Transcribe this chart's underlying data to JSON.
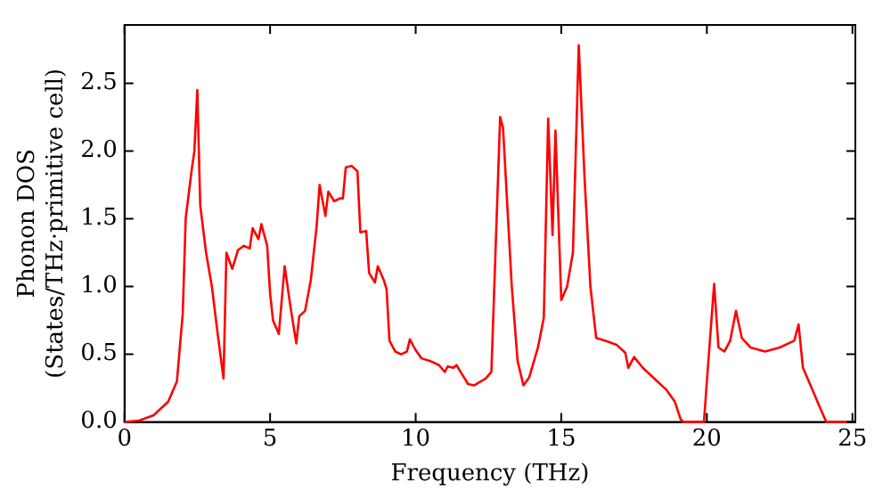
{
  "chart_data": {
    "type": "line",
    "xlabel": "Frequency (THz)",
    "ylabel": "Phonon DOS\n(States/THz·primitive cell)",
    "xlim": [
      0,
      25.1
    ],
    "ylim": [
      0,
      2.93
    ],
    "xticks": [
      0,
      5,
      10,
      15,
      20,
      25
    ],
    "yticks": [
      {
        "value": 0,
        "label": "0.0"
      },
      0.5,
      {
        "value": 1,
        "label": "1.0"
      },
      1.5,
      {
        "value": 2,
        "label": "2.0"
      },
      2.5
    ],
    "grid": false,
    "legend": false,
    "marker": "none",
    "line_style": "solid",
    "x": [
      0,
      0.5,
      1,
      1.5,
      1.8,
      2.0,
      2.1,
      2.3,
      2.4,
      2.5,
      2.6,
      2.8,
      3.0,
      3.2,
      3.4,
      3.5,
      3.7,
      3.9,
      4.1,
      4.3,
      4.4,
      4.6,
      4.7,
      4.9,
      5.0,
      5.1,
      5.3,
      5.5,
      5.7,
      5.9,
      6.0,
      6.2,
      6.4,
      6.6,
      6.7,
      6.9,
      7.0,
      7.2,
      7.4,
      7.5,
      7.6,
      7.8,
      8.0,
      8.1,
      8.3,
      8.4,
      8.6,
      8.7,
      8.9,
      9.0,
      9.1,
      9.3,
      9.5,
      9.7,
      9.8,
      10.0,
      10.2,
      10.5,
      10.8,
      11.0,
      11.1,
      11.3,
      11.4,
      11.6,
      11.8,
      12.0,
      12.4,
      12.6,
      12.9,
      13.0,
      13.3,
      13.5,
      13.7,
      13.9,
      14.2,
      14.4,
      14.55,
      14.7,
      14.8,
      15.0,
      15.2,
      15.4,
      15.6,
      15.8,
      16.0,
      16.2,
      16.5,
      16.9,
      17.2,
      17.3,
      17.5,
      17.8,
      18.2,
      18.6,
      18.9,
      19.1,
      19.2,
      19.9,
      20.0,
      20.25,
      20.4,
      20.6,
      20.8,
      21.0,
      21.2,
      21.5,
      22.0,
      22.5,
      23.0,
      23.15,
      23.3,
      23.6,
      23.9,
      24.1,
      24.8
    ],
    "series": [
      {
        "color": "#ff0000",
        "values": [
          0,
          0.01,
          0.05,
          0.15,
          0.3,
          0.8,
          1.5,
          1.85,
          2.0,
          2.45,
          1.6,
          1.25,
          1.0,
          0.65,
          0.32,
          1.25,
          1.13,
          1.27,
          1.3,
          1.28,
          1.43,
          1.35,
          1.46,
          1.3,
          0.95,
          0.75,
          0.65,
          1.15,
          0.85,
          0.58,
          0.78,
          0.82,
          1.05,
          1.45,
          1.75,
          1.52,
          1.7,
          1.63,
          1.65,
          1.65,
          1.88,
          1.89,
          1.85,
          1.4,
          1.41,
          1.1,
          1.03,
          1.15,
          1.05,
          0.98,
          0.6,
          0.52,
          0.5,
          0.52,
          0.61,
          0.53,
          0.47,
          0.45,
          0.42,
          0.37,
          0.41,
          0.4,
          0.42,
          0.35,
          0.28,
          0.27,
          0.32,
          0.37,
          2.25,
          2.17,
          1.0,
          0.45,
          0.27,
          0.33,
          0.55,
          0.77,
          2.24,
          1.38,
          2.15,
          0.9,
          1.0,
          1.25,
          2.78,
          1.8,
          1.0,
          0.62,
          0.6,
          0.57,
          0.51,
          0.4,
          0.48,
          0.4,
          0.32,
          0.24,
          0.15,
          0.02,
          0,
          0,
          0.3,
          1.02,
          0.55,
          0.52,
          0.6,
          0.82,
          0.62,
          0.55,
          0.52,
          0.55,
          0.6,
          0.72,
          0.4,
          0.25,
          0.1,
          0,
          0
        ]
      }
    ]
  }
}
